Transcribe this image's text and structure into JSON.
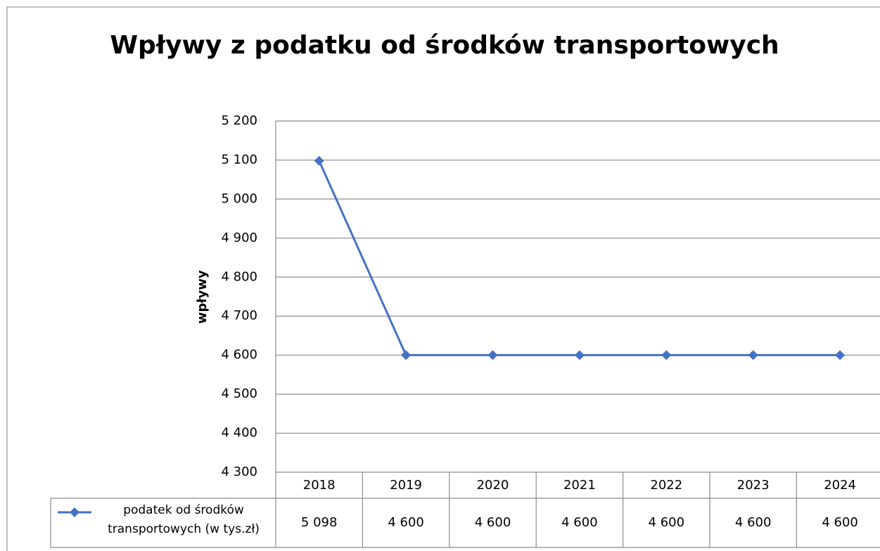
{
  "chart_data": {
    "type": "line",
    "title": "Wpływy z podatku od środków transportowych",
    "y_label": "wpływy",
    "categories": [
      "2018",
      "2019",
      "2020",
      "2021",
      "2022",
      "2023",
      "2024"
    ],
    "series": [
      {
        "name": "podatek od środków transportowych (w tys.zł)",
        "color": "#4472c4",
        "values": [
          5098,
          4600,
          4600,
          4600,
          4600,
          4600,
          4600
        ],
        "value_labels": [
          "5 098",
          "4 600",
          "4 600",
          "4 600",
          "4 600",
          "4 600",
          "4 600"
        ]
      }
    ],
    "ylim": [
      4300,
      5200
    ],
    "yticks": [
      {
        "value": 4300,
        "label": "4 300"
      },
      {
        "value": 4400,
        "label": "4 400"
      },
      {
        "value": 4500,
        "label": "4 500"
      },
      {
        "value": 4600,
        "label": "4 600"
      },
      {
        "value": 4700,
        "label": "4 700"
      },
      {
        "value": 4800,
        "label": "4 800"
      },
      {
        "value": 4900,
        "label": "4 900"
      },
      {
        "value": 5000,
        "label": "5 000"
      },
      {
        "value": 5100,
        "label": "5 100"
      },
      {
        "value": 5200,
        "label": "5 200"
      }
    ],
    "grid": true,
    "data_table": true
  }
}
